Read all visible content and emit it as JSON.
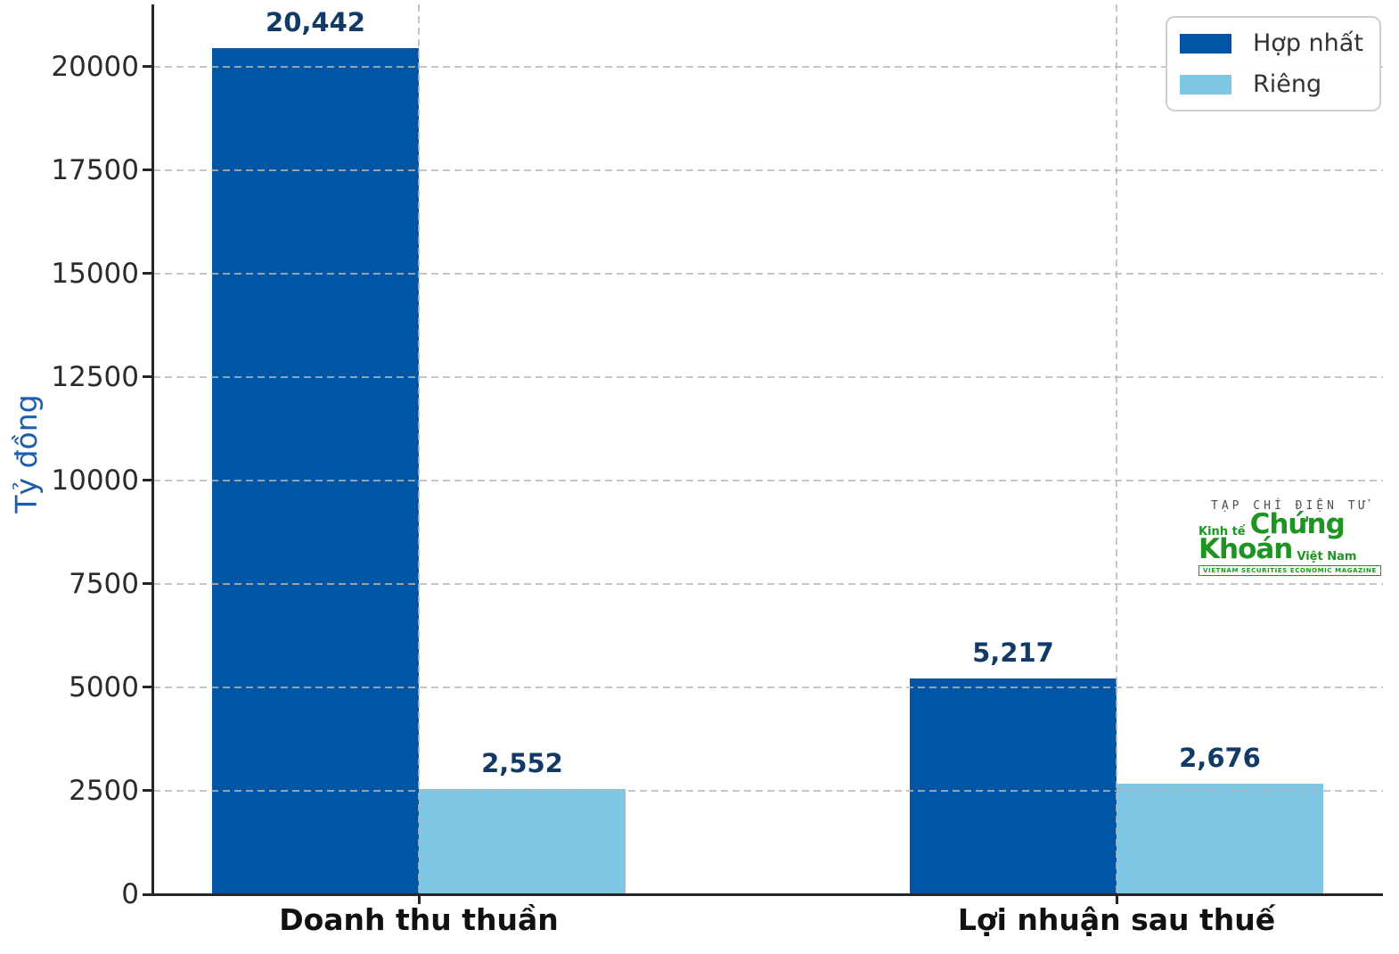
{
  "chart_data": {
    "type": "bar",
    "title": "",
    "categories": [
      "Doanh thu thuần",
      "Lợi nhuận sau thuế"
    ],
    "series": [
      {
        "name": "Hợp nhất",
        "color": "#0056a5",
        "values": [
          20442,
          5217
        ]
      },
      {
        "name": "Riêng",
        "color": "#7ec7e4",
        "values": [
          2552,
          2676
        ]
      }
    ],
    "xlabel": "",
    "ylabel": "Tỷ đồng",
    "ylim": [
      0,
      21500
    ],
    "yticks": [
      0,
      2500,
      5000,
      7500,
      10000,
      12500,
      15000,
      17500,
      20000
    ],
    "grid": "dashed, horizontal at y-ticks and vertical at category centers, drawn over bars",
    "legend_position": "top-right",
    "value_labels": [
      "20,442",
      "5,217",
      "2,552",
      "2,676"
    ],
    "colors": {
      "value_label": "#123a66",
      "ylabel": "#1b5eab",
      "tick_label": "#2b2b2b",
      "category_label": "#111111",
      "spine": "#262626"
    }
  },
  "legend": {
    "items": [
      {
        "label": "Hợp nhất",
        "color": "#0056a5"
      },
      {
        "label": "Riêng",
        "color": "#7ec7e4"
      }
    ]
  },
  "watermark": {
    "top_line": "TẠP CHÍ ĐIỆN TỬ",
    "kinh_te": "Kinh tế",
    "chung": "Chứng",
    "khoan": "Khoán",
    "viet_nam": "Việt Nam",
    "tagline": "VIETNAM SECURITIES ECONOMIC MAGAZINE",
    "green": "#1e9423"
  }
}
